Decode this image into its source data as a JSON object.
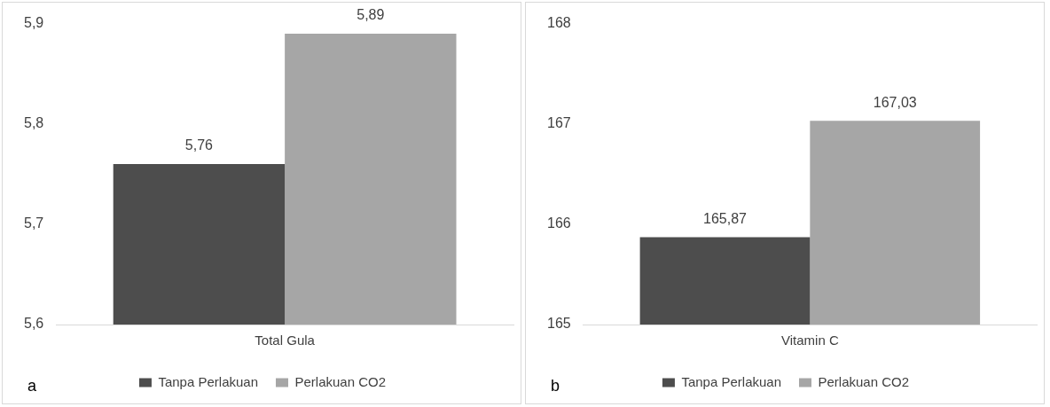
{
  "chart_data": [
    {
      "type": "bar",
      "categories": [
        "Total Gula"
      ],
      "series": [
        {
          "name": "Tanpa Perlakuan",
          "color": "#4d4d4d",
          "values": [
            5.76
          ],
          "value_labels": [
            "5,76"
          ]
        },
        {
          "name": "Perlakuan CO2",
          "color": "#a6a6a6",
          "values": [
            5.89
          ],
          "value_labels": [
            "5,89"
          ]
        }
      ],
      "ylim": [
        5.6,
        5.9
      ],
      "yticks": [
        {
          "value": 5.6,
          "label": "5,6"
        },
        {
          "value": 5.7,
          "label": "5,7"
        },
        {
          "value": 5.8,
          "label": "5,8"
        },
        {
          "value": 5.9,
          "label": "5,9"
        }
      ],
      "grid": false,
      "legend": "bottom",
      "annotations": [
        "a"
      ]
    },
    {
      "type": "bar",
      "categories": [
        "Vitamin C"
      ],
      "series": [
        {
          "name": "Tanpa Perlakuan",
          "color": "#4d4d4d",
          "values": [
            165.87
          ],
          "value_labels": [
            "165,87"
          ]
        },
        {
          "name": "Perlakuan CO2",
          "color": "#a6a6a6",
          "values": [
            167.03
          ],
          "value_labels": [
            "167,03"
          ]
        }
      ],
      "ylim": [
        165,
        168
      ],
      "yticks": [
        165,
        166,
        167,
        168
      ],
      "grid": false,
      "legend": "bottom",
      "annotations": [
        "b"
      ]
    }
  ]
}
